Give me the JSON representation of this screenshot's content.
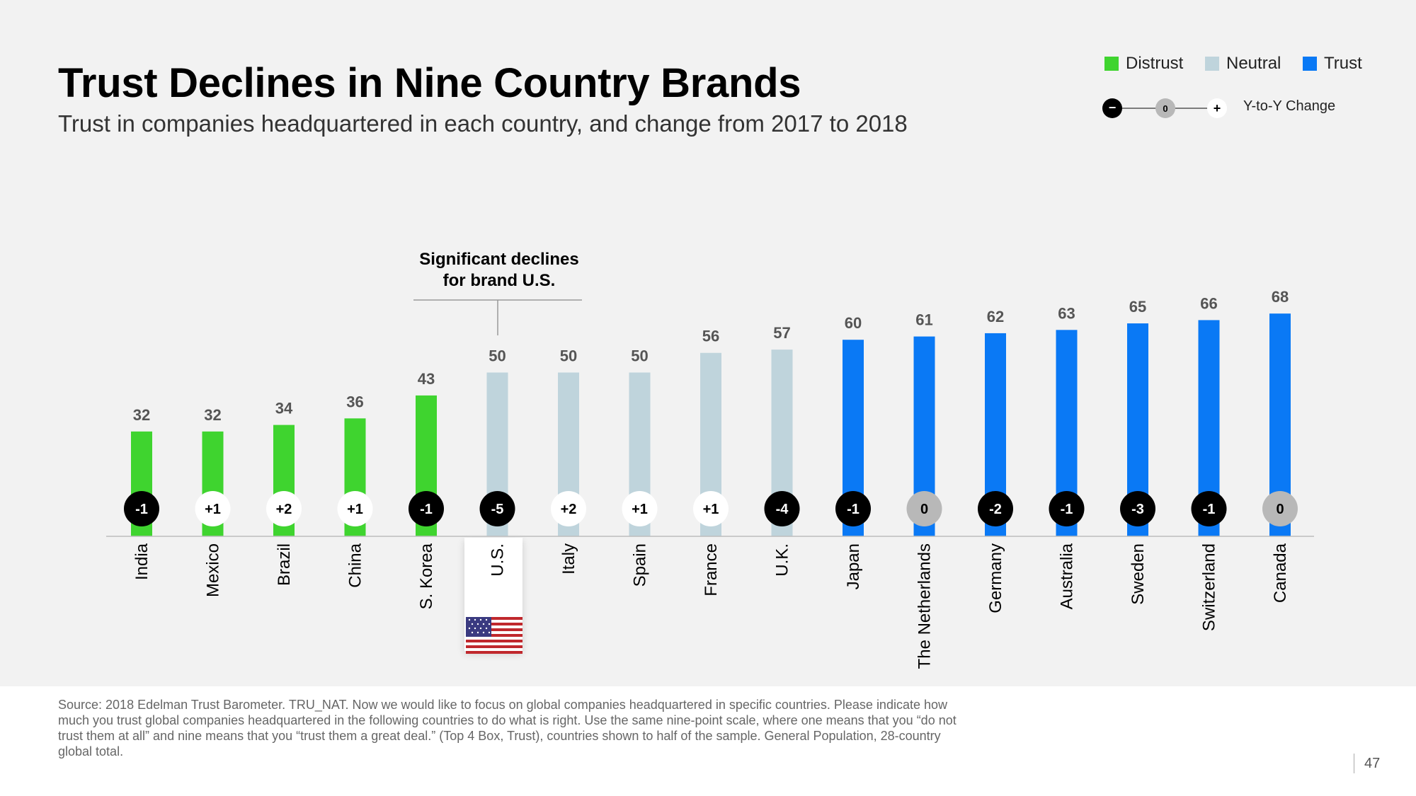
{
  "title": "Trust Declines in Nine Country Brands",
  "subtitle": "Trust in companies headquartered in each country, and change from 2017 to 2018",
  "legend": {
    "distrust": "Distrust",
    "neutral": "Neutral",
    "trust": "Trust",
    "yoy_minus": "−",
    "yoy_zero": "0",
    "yoy_plus": "+",
    "yoy_label": "Y-to-Y Change"
  },
  "colors": {
    "distrust": "#3fd42f",
    "neutral": "#bfd4dc",
    "trust": "#0a79f5",
    "negative_circle": "#000000",
    "positive_circle": "#ffffff",
    "zero_circle": "#b8b8b8"
  },
  "annotation": {
    "line1": "Significant declines",
    "line2": "for brand U.S."
  },
  "chart_data": {
    "type": "bar",
    "title": "Trust Declines in Nine Country Brands",
    "xlabel": "",
    "ylabel": "",
    "ylim": [
      0,
      100
    ],
    "categories": [
      "India",
      "Mexico",
      "Brazil",
      "China",
      "S. Korea",
      "U.S.",
      "Italy",
      "Spain",
      "France",
      "U.K.",
      "Japan",
      "The Netherlands",
      "Germany",
      "Australia",
      "Sweden",
      "Switzerland",
      "Canada"
    ],
    "values": [
      32,
      32,
      34,
      36,
      43,
      50,
      50,
      50,
      56,
      57,
      60,
      61,
      62,
      63,
      65,
      66,
      68
    ],
    "change_labels": [
      "-1",
      "+1",
      "+2",
      "+1",
      "-1",
      "-5",
      "+2",
      "+1",
      "+1",
      "-4",
      "-1",
      "0",
      "-2",
      "-1",
      "-3",
      "-1",
      "0"
    ],
    "category_group": [
      "distrust",
      "distrust",
      "distrust",
      "distrust",
      "distrust",
      "neutral",
      "neutral",
      "neutral",
      "neutral",
      "neutral",
      "trust",
      "trust",
      "trust",
      "trust",
      "trust",
      "trust",
      "trust"
    ]
  },
  "source": "Source: 2018 Edelman Trust Barometer. TRU_NAT. Now we would like to focus on global companies headquartered in specific countries. Please indicate how much you trust global companies headquartered in the following countries to do what is right. Use the same nine-point scale, where one means that you “do not trust them at all” and nine means that you “trust them a great deal.” (Top 4 Box, Trust), countries shown to half of the sample. General Population, 28-country global total.",
  "page_number": "47"
}
